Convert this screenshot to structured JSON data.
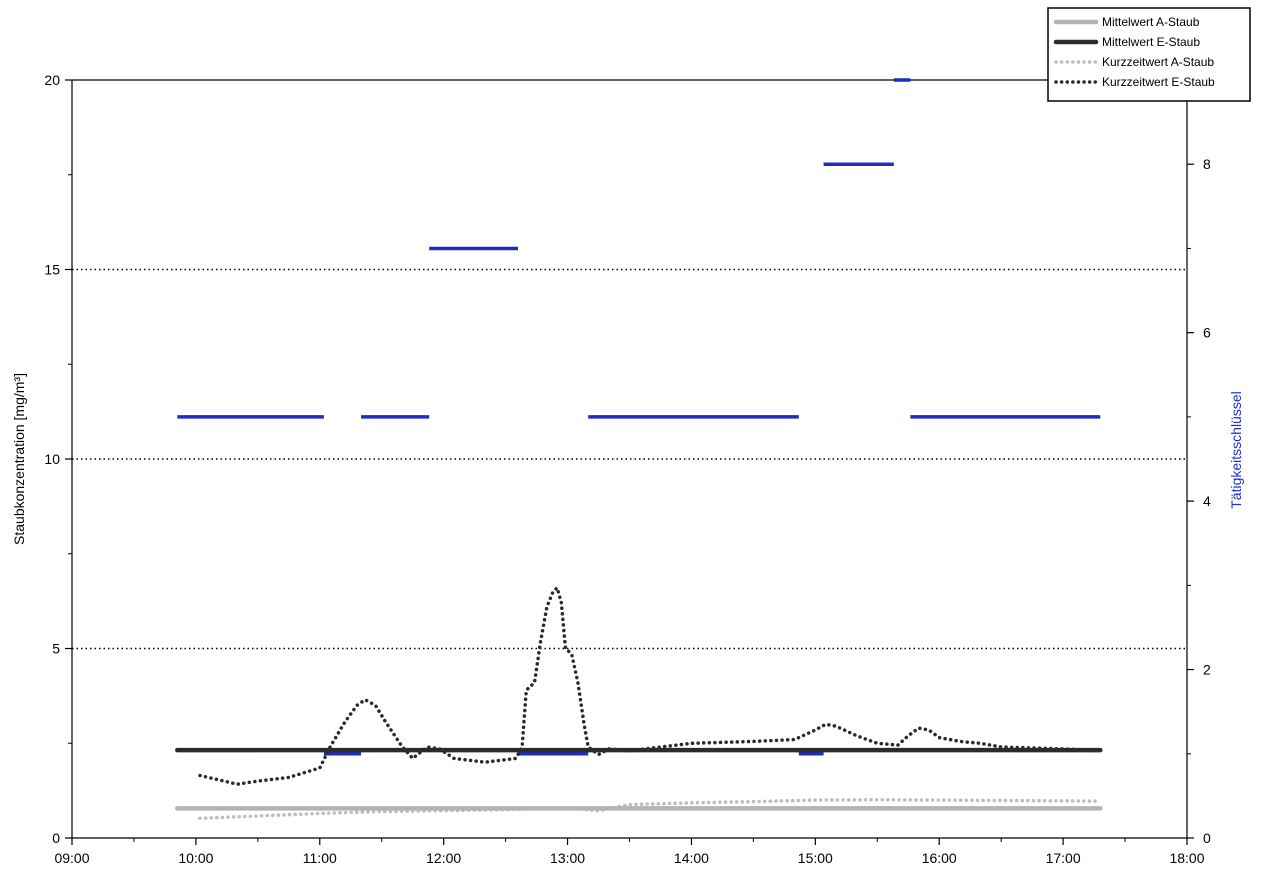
{
  "chart_data": {
    "type": "line",
    "title": "",
    "xlabel": "",
    "ylabel": "Staubkonzentration [mg/m³]",
    "y2label": "Tätigkeitsschlüssel",
    "xlim": [
      "09:00",
      "18:00"
    ],
    "xticks": [
      "09:00",
      "10:00",
      "11:00",
      "12:00",
      "13:00",
      "14:00",
      "15:00",
      "16:00",
      "17:00",
      "18:00"
    ],
    "ylim": [
      0,
      20
    ],
    "yticks": [
      "0",
      "5",
      "10",
      "15",
      "20"
    ],
    "y2lim": [
      0,
      9
    ],
    "y2ticks": [
      "0",
      "2",
      "4",
      "6",
      "8"
    ],
    "grid": {
      "dotted_y": [
        5,
        10,
        15
      ],
      "solid_top": true
    },
    "legend": {
      "position": "top-right"
    },
    "colors": {
      "mittelwert_a": "#b3b3b3",
      "mittelwert_e": "#2b2b2b",
      "kurzzeit_a": "#bdbdbd",
      "kurzzeit_e": "#2b2b2b",
      "activity": "#1f2bc8",
      "y2_title": "#1a2fd0"
    },
    "series": [
      {
        "name": "Mittelwert A-Staub",
        "style": "solid-light",
        "axis": "left",
        "points": [
          [
            "09:51",
            0.78
          ],
          [
            "17:18",
            0.78
          ]
        ]
      },
      {
        "name": "Mittelwert E-Staub",
        "style": "solid-dark",
        "axis": "left",
        "points": [
          [
            "09:51",
            2.32
          ],
          [
            "17:18",
            2.32
          ]
        ]
      },
      {
        "name": "Kurzzeitwert A-Staub",
        "style": "dotted-light",
        "axis": "left",
        "points": [
          [
            "10:02",
            0.52
          ],
          [
            "10:30",
            0.58
          ],
          [
            "11:00",
            0.65
          ],
          [
            "11:30",
            0.7
          ],
          [
            "12:00",
            0.72
          ],
          [
            "12:30",
            0.75
          ],
          [
            "13:00",
            0.8
          ],
          [
            "13:15",
            0.72
          ],
          [
            "13:30",
            0.88
          ],
          [
            "14:00",
            0.93
          ],
          [
            "14:30",
            0.96
          ],
          [
            "15:00",
            1.0
          ],
          [
            "15:30",
            1.01
          ],
          [
            "16:00",
            1.0
          ],
          [
            "16:30",
            0.99
          ],
          [
            "17:00",
            0.98
          ],
          [
            "17:18",
            0.97
          ]
        ]
      },
      {
        "name": "Kurzzeitwert E-Staub",
        "style": "dotted-dark",
        "axis": "left",
        "points": [
          [
            "10:02",
            1.65
          ],
          [
            "10:10",
            1.55
          ],
          [
            "10:20",
            1.42
          ],
          [
            "10:30",
            1.5
          ],
          [
            "10:45",
            1.6
          ],
          [
            "11:00",
            1.85
          ],
          [
            "11:05",
            2.4
          ],
          [
            "11:12",
            3.05
          ],
          [
            "11:18",
            3.5
          ],
          [
            "11:22",
            3.65
          ],
          [
            "11:27",
            3.5
          ],
          [
            "11:32",
            3.05
          ],
          [
            "11:40",
            2.4
          ],
          [
            "11:45",
            2.1
          ],
          [
            "11:52",
            2.4
          ],
          [
            "11:58",
            2.35
          ],
          [
            "12:05",
            2.1
          ],
          [
            "12:20",
            2.0
          ],
          [
            "12:35",
            2.1
          ],
          [
            "12:38",
            2.4
          ],
          [
            "12:40",
            3.9
          ],
          [
            "12:44",
            4.1
          ],
          [
            "12:47",
            5.2
          ],
          [
            "12:50",
            6.1
          ],
          [
            "12:53",
            6.5
          ],
          [
            "12:55",
            6.6
          ],
          [
            "12:57",
            6.2
          ],
          [
            "12:59",
            5.0
          ],
          [
            "13:02",
            4.85
          ],
          [
            "13:05",
            4.1
          ],
          [
            "13:08",
            3.0
          ],
          [
            "13:10",
            2.4
          ],
          [
            "13:15",
            2.2
          ],
          [
            "13:20",
            2.35
          ],
          [
            "13:30",
            2.3
          ],
          [
            "14:00",
            2.5
          ],
          [
            "14:30",
            2.55
          ],
          [
            "14:50",
            2.6
          ],
          [
            "15:00",
            2.85
          ],
          [
            "15:05",
            3.0
          ],
          [
            "15:10",
            2.95
          ],
          [
            "15:20",
            2.7
          ],
          [
            "15:30",
            2.5
          ],
          [
            "15:40",
            2.45
          ],
          [
            "15:45",
            2.7
          ],
          [
            "15:50",
            2.9
          ],
          [
            "15:55",
            2.85
          ],
          [
            "16:00",
            2.65
          ],
          [
            "16:10",
            2.55
          ],
          [
            "16:20",
            2.5
          ],
          [
            "16:30",
            2.4
          ],
          [
            "17:00",
            2.35
          ],
          [
            "17:18",
            2.3
          ]
        ]
      },
      {
        "name": "",
        "style": "activity-segments",
        "axis": "right",
        "segments": [
          {
            "start": "09:51",
            "end": "11:02",
            "value": 5
          },
          {
            "start": "11:02",
            "end": "11:20",
            "value": 1
          },
          {
            "start": "11:20",
            "end": "11:53",
            "value": 5
          },
          {
            "start": "11:53",
            "end": "12:36",
            "value": 7
          },
          {
            "start": "12:36",
            "end": "13:10",
            "value": 1
          },
          {
            "start": "13:10",
            "end": "14:52",
            "value": 5
          },
          {
            "start": "14:52",
            "end": "15:04",
            "value": 1
          },
          {
            "start": "15:04",
            "end": "15:38",
            "value": 8
          },
          {
            "start": "15:38",
            "end": "15:46",
            "value": 9
          },
          {
            "start": "15:46",
            "end": "17:18",
            "value": 5
          }
        ]
      }
    ]
  }
}
